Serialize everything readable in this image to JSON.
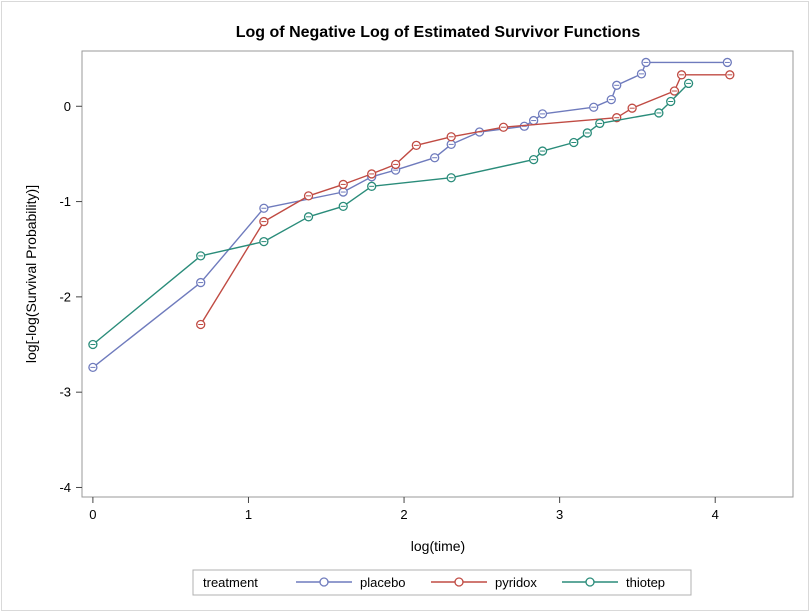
{
  "chart_data": {
    "type": "line",
    "title": "Log of Negative Log of Estimated Survivor Functions",
    "xlabel": "log(time)",
    "ylabel": "log[-log(Survival Probability)]",
    "xlim": [
      -0.07,
      4.5
    ],
    "ylim": [
      -4.1,
      0.58
    ],
    "xticks": [
      0,
      1,
      2,
      3,
      4
    ],
    "xtick_labels": [
      "0",
      "1",
      "2",
      "3",
      "4"
    ],
    "yticks": [
      -4,
      -3,
      -2,
      -1,
      0
    ],
    "ytick_labels": [
      "-4",
      "-3",
      "-2",
      "-1",
      "0"
    ],
    "grid": false,
    "step": "horizontal-then-vertical for final points",
    "legend": {
      "title": "treatment",
      "placement": "bottom"
    },
    "series": [
      {
        "name": "placebo",
        "color": "#6f7bbd",
        "points": [
          [
            0.0,
            -2.74
          ],
          [
            0.693,
            -1.85
          ],
          [
            1.099,
            -1.07
          ],
          [
            1.609,
            -0.9
          ],
          [
            1.792,
            -0.74
          ],
          [
            1.946,
            -0.67
          ],
          [
            2.197,
            -0.54
          ],
          [
            2.303,
            -0.4
          ],
          [
            2.485,
            -0.27
          ],
          [
            2.773,
            -0.21
          ],
          [
            2.833,
            -0.15
          ],
          [
            2.89,
            -0.08
          ],
          [
            3.219,
            -0.01
          ],
          [
            3.332,
            0.07
          ],
          [
            3.367,
            0.22
          ],
          [
            3.526,
            0.34
          ],
          [
            3.555,
            0.46
          ],
          [
            4.078,
            0.46
          ]
        ]
      },
      {
        "name": "pyridox",
        "color": "#c04b43",
        "points": [
          [
            0.693,
            -2.29
          ],
          [
            1.099,
            -1.21
          ],
          [
            1.386,
            -0.94
          ],
          [
            1.609,
            -0.82
          ],
          [
            1.792,
            -0.71
          ],
          [
            1.946,
            -0.61
          ],
          [
            2.079,
            -0.41
          ],
          [
            2.303,
            -0.32
          ],
          [
            2.639,
            -0.22
          ],
          [
            3.367,
            -0.12
          ],
          [
            3.466,
            -0.02
          ],
          [
            3.738,
            0.16
          ],
          [
            3.784,
            0.33
          ],
          [
            4.094,
            0.33
          ]
        ]
      },
      {
        "name": "thiotep",
        "color": "#2a8c7a",
        "points": [
          [
            0.0,
            -2.5
          ],
          [
            0.693,
            -1.57
          ],
          [
            1.099,
            -1.42
          ],
          [
            1.386,
            -1.16
          ],
          [
            1.609,
            -1.05
          ],
          [
            1.792,
            -0.84
          ],
          [
            2.303,
            -0.75
          ],
          [
            2.833,
            -0.56
          ],
          [
            2.89,
            -0.47
          ],
          [
            3.091,
            -0.38
          ],
          [
            3.178,
            -0.28
          ],
          [
            3.258,
            -0.18
          ],
          [
            3.638,
            -0.07
          ],
          [
            3.714,
            0.05
          ],
          [
            3.829,
            0.24
          ]
        ]
      }
    ]
  }
}
